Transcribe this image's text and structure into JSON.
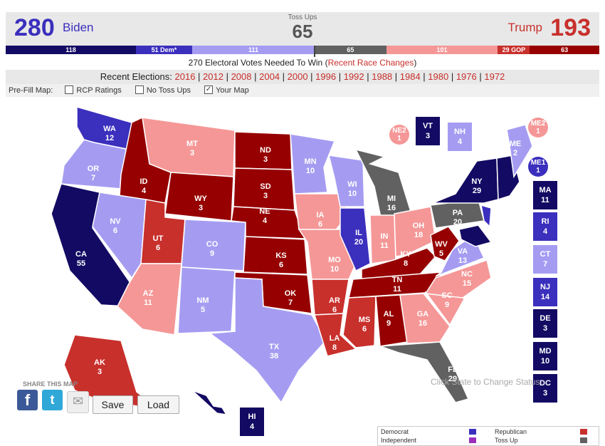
{
  "header": {
    "biden_count": "280",
    "biden_name": "Biden",
    "tossup_label": "Toss Ups",
    "tossup_count": "65",
    "trump_name": "Trump",
    "trump_count": "193"
  },
  "bar": {
    "segments": [
      {
        "label": "118",
        "value": 118,
        "color": "#130a63"
      },
      {
        "label": "51 Dem*",
        "value": 51,
        "color": "#3b2fbd"
      },
      {
        "label": "111",
        "value": 111,
        "color": "#a59cf2"
      },
      {
        "label": "65",
        "value": 65,
        "color": "#616161"
      },
      {
        "label": "101",
        "value": 101,
        "color": "#f59797"
      },
      {
        "label": "29 GOP",
        "value": 29,
        "color": "#c8302c"
      },
      {
        "label": "63",
        "value": 63,
        "color": "#960000"
      }
    ]
  },
  "needed": {
    "text": "270 Electoral Votes Needed To Win",
    "link": "Recent Race Changes"
  },
  "recent": {
    "label": "Recent Elections:",
    "years": [
      "2016",
      "2012",
      "2008",
      "2004",
      "2000",
      "1996",
      "1992",
      "1988",
      "1984",
      "1980",
      "1976",
      "1972"
    ]
  },
  "prefill": {
    "label": "Pre-Fill Map:",
    "rcp": "RCP Ratings",
    "notoss": "No Toss Ups",
    "yourmap": "Your Map",
    "check": "✓"
  },
  "colors": {
    "safe_dem": "#130a63",
    "likely_dem": "#3b2fbd",
    "lean_dem": "#a59cf2",
    "toss": "#616161",
    "lean_rep": "#f59797",
    "likely_rep": "#c8302c",
    "safe_rep": "#960000"
  },
  "states": {
    "WA": {
      "abbr": "WA",
      "ev": "12"
    },
    "OR": {
      "abbr": "OR",
      "ev": "7"
    },
    "CA": {
      "abbr": "CA",
      "ev": "55"
    },
    "ID": {
      "abbr": "ID",
      "ev": "4"
    },
    "NV": {
      "abbr": "NV",
      "ev": "6"
    },
    "MT": {
      "abbr": "MT",
      "ev": "3"
    },
    "WY": {
      "abbr": "WY",
      "ev": "3"
    },
    "UT": {
      "abbr": "UT",
      "ev": "6"
    },
    "AZ": {
      "abbr": "AZ",
      "ev": "11"
    },
    "CO": {
      "abbr": "CO",
      "ev": "9"
    },
    "NM": {
      "abbr": "NM",
      "ev": "5"
    },
    "ND": {
      "abbr": "ND",
      "ev": "3"
    },
    "SD": {
      "abbr": "SD",
      "ev": "3"
    },
    "NE": {
      "abbr": "NE",
      "ev": "4"
    },
    "KS": {
      "abbr": "KS",
      "ev": "6"
    },
    "OK": {
      "abbr": "OK",
      "ev": "7"
    },
    "TX": {
      "abbr": "TX",
      "ev": "38"
    },
    "MN": {
      "abbr": "MN",
      "ev": "10"
    },
    "IA": {
      "abbr": "IA",
      "ev": "6"
    },
    "MO": {
      "abbr": "MO",
      "ev": "10"
    },
    "AR": {
      "abbr": "AR",
      "ev": "6"
    },
    "LA": {
      "abbr": "LA",
      "ev": "8"
    },
    "WI": {
      "abbr": "WI",
      "ev": "10"
    },
    "IL": {
      "abbr": "IL",
      "ev": "20"
    },
    "MI": {
      "abbr": "MI",
      "ev": "16"
    },
    "IN": {
      "abbr": "IN",
      "ev": "11"
    },
    "OH": {
      "abbr": "OH",
      "ev": "18"
    },
    "KY": {
      "abbr": "KY",
      "ev": "8"
    },
    "TN": {
      "abbr": "TN",
      "ev": "11"
    },
    "MS": {
      "abbr": "MS",
      "ev": "6"
    },
    "AL": {
      "abbr": "AL",
      "ev": "9"
    },
    "GA": {
      "abbr": "GA",
      "ev": "16"
    },
    "FL": {
      "abbr": "FL",
      "ev": "29"
    },
    "SC": {
      "abbr": "SC",
      "ev": "9"
    },
    "NC": {
      "abbr": "NC",
      "ev": "15"
    },
    "VA": {
      "abbr": "VA",
      "ev": "13"
    },
    "WV": {
      "abbr": "WV",
      "ev": "5"
    },
    "PA": {
      "abbr": "PA",
      "ev": "20"
    },
    "NY": {
      "abbr": "NY",
      "ev": "29"
    },
    "ME": {
      "abbr": "ME",
      "ev": "2"
    },
    "AK": {
      "abbr": "AK",
      "ev": "3"
    },
    "HI": {
      "abbr": "HI",
      "ev": "4"
    },
    "VT": {
      "abbr": "VT",
      "ev": "3"
    },
    "NH": {
      "abbr": "NH",
      "ev": "4"
    },
    "MA": {
      "abbr": "MA",
      "ev": "11"
    },
    "RI": {
      "abbr": "RI",
      "ev": "4"
    },
    "CT": {
      "abbr": "CT",
      "ev": "7"
    },
    "NJ": {
      "abbr": "NJ",
      "ev": "14"
    },
    "DE": {
      "abbr": "DE",
      "ev": "3"
    },
    "MD": {
      "abbr": "MD",
      "ev": "10"
    },
    "DC": {
      "abbr": "DC",
      "ev": "3"
    },
    "NE2": {
      "abbr": "NE2",
      "ev": "1"
    },
    "ME2": {
      "abbr": "ME2",
      "ev": "1"
    },
    "ME1": {
      "abbr": "ME1",
      "ev": "1"
    }
  },
  "share": {
    "label": "SHARE THIS MAP",
    "save": "Save",
    "load": "Load"
  },
  "hint": "Click State to Change Status",
  "legend": {
    "dem": "Democrat",
    "rep": "Republican",
    "ind": "Independent",
    "toss": "Toss Up"
  }
}
